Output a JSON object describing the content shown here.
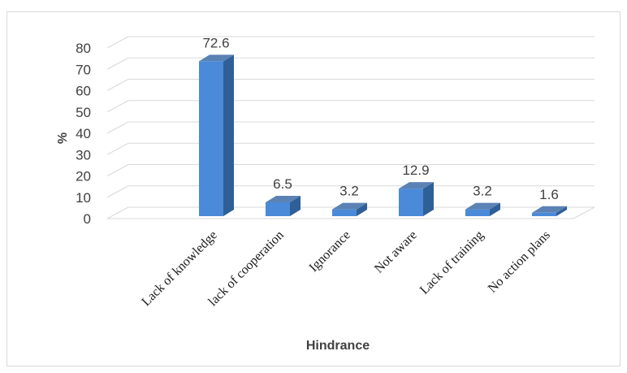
{
  "chart_data": {
    "type": "bar",
    "title": "",
    "xlabel": "Hindrance",
    "ylabel": "%",
    "ylim": [
      0,
      80
    ],
    "yticks": [
      0,
      10,
      20,
      30,
      40,
      50,
      60,
      70,
      80
    ],
    "grid": true,
    "legend": "none",
    "categories": [
      "Lack of knowledge",
      "lack of cooperation",
      "Ignorance",
      "Not aware",
      "Lack of training",
      "No action plans"
    ],
    "values": [
      72.6,
      6.5,
      3.2,
      12.9,
      3.2,
      1.6
    ],
    "data_labels": [
      "72.6",
      "6.5",
      "3.2",
      "12.9",
      "3.2",
      "1.6"
    ],
    "colors": {
      "bar_front": "#4a8ad8",
      "bar_side": "#2f5f97",
      "bar_top": "#5b82b4",
      "grid": "#d9d9d9"
    }
  }
}
